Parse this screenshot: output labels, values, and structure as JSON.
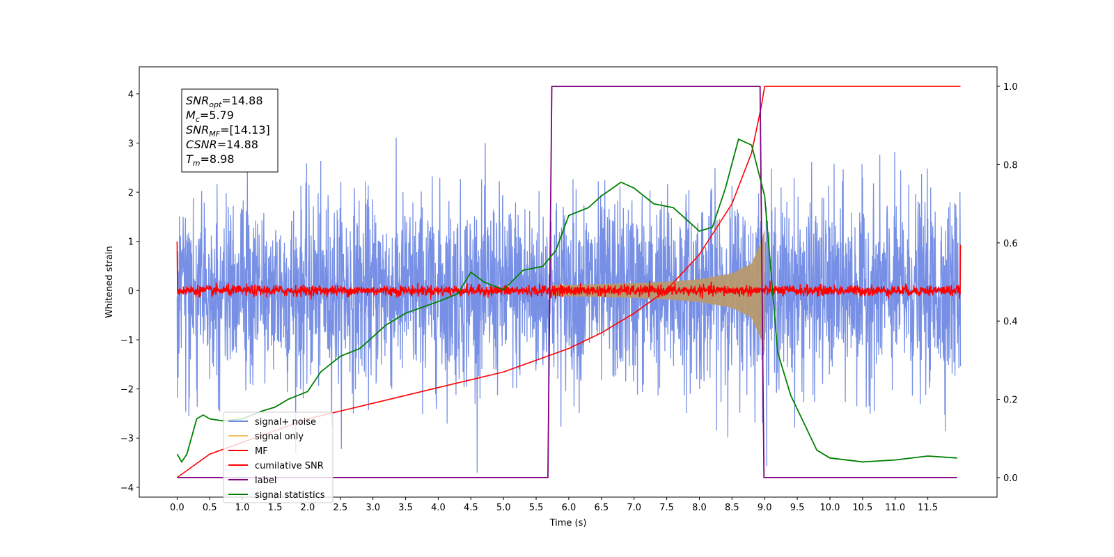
{
  "chart_data": {
    "type": "line",
    "xlabel": "Time (s)",
    "ylabel": "Whitened strain",
    "xlim": [
      -0.58,
      12.56
    ],
    "ylim_left": [
      -4.2,
      4.55
    ],
    "ylim_right": [
      -0.05,
      1.05
    ],
    "x_ticks": [
      0.0,
      0.5,
      1.0,
      1.5,
      2.0,
      2.5,
      3.0,
      3.5,
      4.0,
      4.5,
      5.0,
      5.5,
      6.0,
      6.5,
      7.0,
      7.5,
      8.0,
      8.5,
      9.0,
      9.5,
      10.0,
      10.5,
      11.0,
      11.5
    ],
    "x_tick_labels": [
      "0.0",
      "0.5",
      "1.0",
      "1.5",
      "2.0",
      "2.5",
      "3.0",
      "3.5",
      "4.0",
      "4.5",
      "5.0",
      "5.5",
      "6.0",
      "6.5",
      "7.0",
      "7.5",
      "8.0",
      "8.5",
      "9.0",
      "9.5",
      "10.0",
      "10.5",
      "11.0",
      "11.5"
    ],
    "y_left_ticks": [
      -4,
      -3,
      -2,
      -1,
      0,
      1,
      2,
      3,
      4
    ],
    "y_left_tick_labels": [
      "−4",
      "−3",
      "−2",
      "−1",
      "0",
      "1",
      "2",
      "3",
      "4"
    ],
    "y_right_ticks": [
      0.0,
      0.2,
      0.4,
      0.6,
      0.8,
      1.0
    ],
    "y_right_tick_labels": [
      "0.0",
      "0.2",
      "0.4",
      "0.6",
      "0.8",
      "1.0"
    ],
    "grid": false,
    "legend_placement": "lower-left",
    "series": [
      {
        "name": "signal+ noise",
        "axis": "left",
        "color": "#6b87e3",
        "x_range": [
          0.0,
          12.0
        ],
        "noise_std": 0.95,
        "peak_max": 4.2,
        "peak_min": -3.7
      },
      {
        "name": "signal only",
        "axis": "left",
        "color": "#f5c060",
        "x_range": [
          5.7,
          9.0
        ],
        "envelope": [
          [
            5.7,
            0.11
          ],
          [
            6.5,
            0.13
          ],
          [
            7.0,
            0.15
          ],
          [
            7.5,
            0.18
          ],
          [
            8.0,
            0.23
          ],
          [
            8.5,
            0.35
          ],
          [
            8.8,
            0.55
          ],
          [
            8.95,
            1.0
          ],
          [
            9.0,
            1.25
          ]
        ]
      },
      {
        "name": "MF",
        "axis": "left",
        "color": "#ff0000",
        "x_range": [
          0.0,
          12.0
        ],
        "noise_std": 0.055,
        "edge_values": [
          [
            0.0,
            1.0
          ],
          [
            12.0,
            0.93
          ]
        ]
      },
      {
        "name": "cumilative SNR",
        "axis": "right",
        "color": "#ff0000",
        "points": [
          [
            0.0,
            0.0
          ],
          [
            0.5,
            0.06
          ],
          [
            1.0,
            0.09
          ],
          [
            1.5,
            0.12
          ],
          [
            2.0,
            0.15
          ],
          [
            2.5,
            0.17
          ],
          [
            3.0,
            0.19
          ],
          [
            3.5,
            0.21
          ],
          [
            4.0,
            0.23
          ],
          [
            4.5,
            0.25
          ],
          [
            5.0,
            0.27
          ],
          [
            5.5,
            0.3
          ],
          [
            6.0,
            0.33
          ],
          [
            6.5,
            0.37
          ],
          [
            7.0,
            0.42
          ],
          [
            7.5,
            0.48
          ],
          [
            8.0,
            0.57
          ],
          [
            8.5,
            0.7
          ],
          [
            8.8,
            0.83
          ],
          [
            8.95,
            0.95
          ],
          [
            9.0,
            1.0
          ],
          [
            12.0,
            1.0
          ]
        ]
      },
      {
        "name": "label",
        "axis": "right",
        "color": "#800080",
        "points": [
          [
            0.0,
            0.0
          ],
          [
            5.68,
            0.0
          ],
          [
            5.74,
            1.0
          ],
          [
            8.93,
            1.0
          ],
          [
            8.99,
            0.0
          ],
          [
            11.95,
            0.0
          ]
        ]
      },
      {
        "name": "signal statistics",
        "axis": "right",
        "color": "#008000",
        "points": [
          [
            0.0,
            0.06
          ],
          [
            0.07,
            0.04
          ],
          [
            0.15,
            0.06
          ],
          [
            0.3,
            0.15
          ],
          [
            0.4,
            0.16
          ],
          [
            0.5,
            0.15
          ],
          [
            0.7,
            0.145
          ],
          [
            1.0,
            0.15
          ],
          [
            1.3,
            0.17
          ],
          [
            1.5,
            0.18
          ],
          [
            1.7,
            0.2
          ],
          [
            2.0,
            0.22
          ],
          [
            2.2,
            0.27
          ],
          [
            2.5,
            0.31
          ],
          [
            2.8,
            0.33
          ],
          [
            3.0,
            0.36
          ],
          [
            3.2,
            0.39
          ],
          [
            3.5,
            0.42
          ],
          [
            4.0,
            0.45
          ],
          [
            4.3,
            0.47
          ],
          [
            4.5,
            0.525
          ],
          [
            4.7,
            0.5
          ],
          [
            5.0,
            0.48
          ],
          [
            5.3,
            0.53
          ],
          [
            5.6,
            0.54
          ],
          [
            5.8,
            0.58
          ],
          [
            6.0,
            0.67
          ],
          [
            6.3,
            0.69
          ],
          [
            6.5,
            0.72
          ],
          [
            6.8,
            0.755
          ],
          [
            7.0,
            0.74
          ],
          [
            7.3,
            0.7
          ],
          [
            7.6,
            0.69
          ],
          [
            8.0,
            0.63
          ],
          [
            8.2,
            0.64
          ],
          [
            8.4,
            0.74
          ],
          [
            8.6,
            0.865
          ],
          [
            8.8,
            0.85
          ],
          [
            9.0,
            0.72
          ],
          [
            9.2,
            0.32
          ],
          [
            9.4,
            0.21
          ],
          [
            9.6,
            0.14
          ],
          [
            9.8,
            0.07
          ],
          [
            10.0,
            0.05
          ],
          [
            10.5,
            0.04
          ],
          [
            11.0,
            0.045
          ],
          [
            11.5,
            0.055
          ],
          [
            11.95,
            0.05
          ]
        ]
      }
    ],
    "annotation": [
      {
        "main": "SNR",
        "sub": "opt",
        "value": "=14.88"
      },
      {
        "main": "M",
        "sub": "c",
        "value": "=5.79"
      },
      {
        "main": "SNR",
        "sub": "MF",
        "value": "=[14.13]"
      },
      {
        "main": "CSNR",
        "sub": "",
        "value": "=14.88"
      },
      {
        "main": "T",
        "sub": "m",
        "value": "=8.98"
      }
    ]
  }
}
